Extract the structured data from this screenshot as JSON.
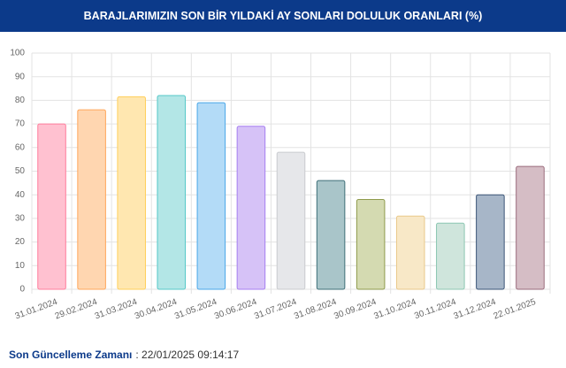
{
  "header": {
    "title": "BARAJLARIMIZIN SON BİR YILDAKİ AY SONLARI DOLULUK ORANLARI (%)"
  },
  "chart_data": {
    "type": "bar",
    "categories": [
      "31.01.2024",
      "29.02.2024",
      "31.03.2024",
      "30.04.2024",
      "31.05.2024",
      "30.06.2024",
      "31.07.2024",
      "31.08.2024",
      "30.09.2024",
      "31.10.2024",
      "30.11.2024",
      "31.12.2024",
      "22.01.2025"
    ],
    "values": [
      70,
      76,
      81.5,
      82,
      79,
      69,
      58,
      46,
      38,
      31,
      28,
      40,
      52
    ],
    "colors": [
      "#ffc1d0",
      "#ffd6b0",
      "#ffe7b0",
      "#b3e6e6",
      "#b3dbf7",
      "#d6c2f7",
      "#e6e7ea",
      "#a9c5c9",
      "#d4dab1",
      "#f8e8c7",
      "#cfe5dc",
      "#a7b6c8",
      "#d5bdc5"
    ],
    "border_colors": [
      "#ff7d9c",
      "#ffa65a",
      "#ffcf5a",
      "#55c8c8",
      "#4aa7e8",
      "#a57ef0",
      "#c9cbcf",
      "#3e6f78",
      "#8e9a4c",
      "#e9c98a",
      "#8cc7b2",
      "#3b5577",
      "#9a6b7c"
    ],
    "ylim": [
      0,
      100
    ],
    "yticks": [
      0,
      10,
      20,
      30,
      40,
      50,
      60,
      70,
      80,
      90,
      100
    ],
    "grid": true
  },
  "footer": {
    "label": "Son Güncelleme Zamanı",
    "value": ": 22/01/2025 09:14:17"
  }
}
